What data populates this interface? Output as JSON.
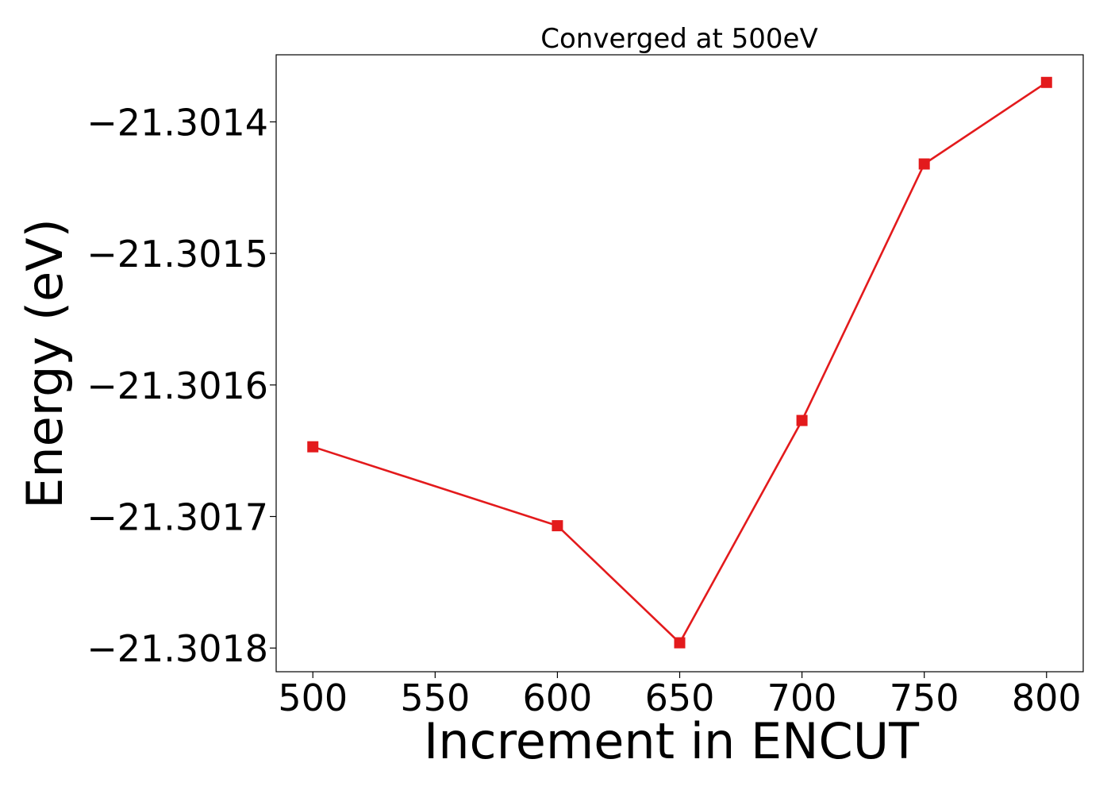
{
  "chart_data": {
    "type": "line",
    "title": "Converged at 500eV",
    "xlabel": "Increment in ENCUT",
    "ylabel": "Energy (eV)",
    "x": [
      500,
      600,
      650,
      700,
      750,
      800
    ],
    "series": [
      {
        "values": [
          -21.301647,
          -21.301707,
          -21.301796,
          -21.301627,
          -21.301432,
          -21.30137
        ],
        "color": "#e31a1c",
        "marker": "square"
      }
    ],
    "xlim": [
      485,
      815
    ],
    "ylim": [
      -21.301818,
      -21.301349
    ],
    "xticks": [
      500,
      550,
      600,
      650,
      700,
      750,
      800
    ],
    "xtick_labels": [
      "500",
      "550",
      "600",
      "650",
      "700",
      "750",
      "800"
    ],
    "yticks": [
      -21.3018,
      -21.3017,
      -21.3016,
      -21.3015,
      -21.3014
    ],
    "ytick_labels": [
      "−21.3018",
      "−21.3017",
      "−21.3016",
      "−21.3015",
      "−21.3014"
    ],
    "grid": false,
    "legend": false
  }
}
